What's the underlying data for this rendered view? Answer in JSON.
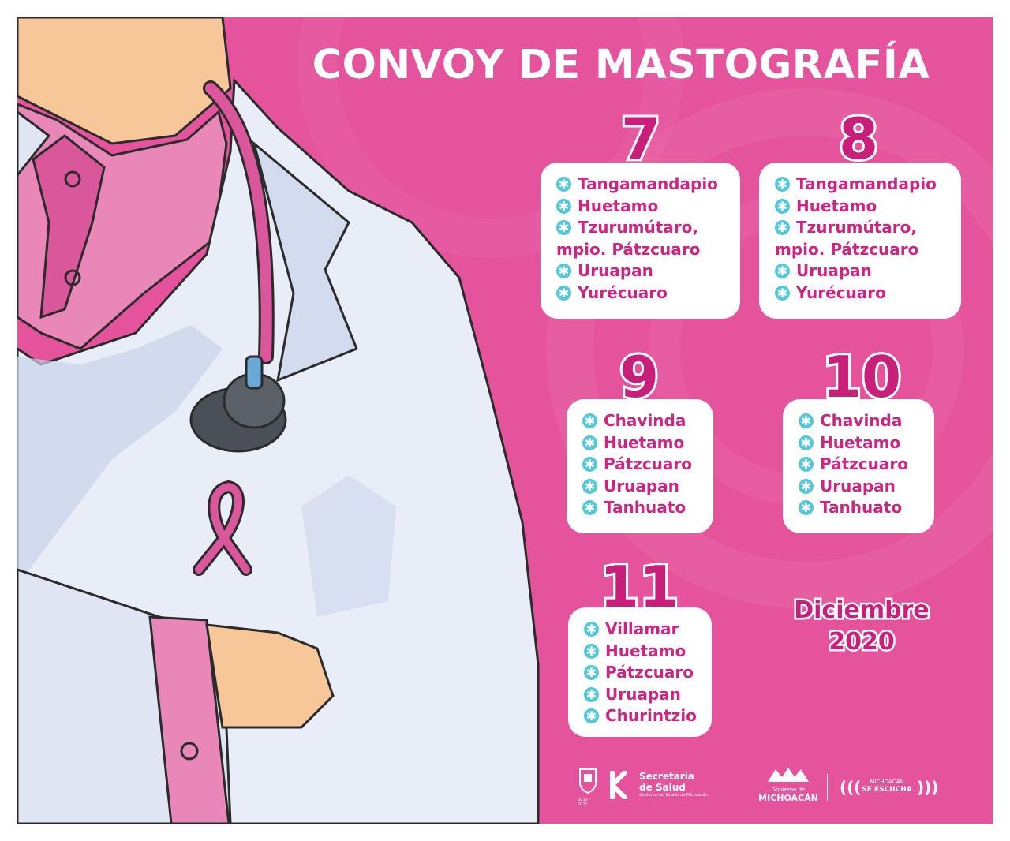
{
  "title": "CONVOY DE MASTOGRAFÍA",
  "colors": {
    "background": "#e4539c",
    "card_text": "#cc2680",
    "number": "#c81f7b",
    "bullet": "#55c8d8",
    "card_bg": "#ffffff"
  },
  "bullet_glyph": "✱",
  "days": [
    {
      "number": "7",
      "items": [
        "Tangamandapio",
        "Huetamo",
        "Tzurumútaro,\nmpio. Pátzcuaro",
        "Uruapan",
        "Yurécuaro"
      ]
    },
    {
      "number": "8",
      "items": [
        "Tangamandapio",
        "Huetamo",
        "Tzurumútaro,\nmpio. Pátzcuaro",
        "Uruapan",
        "Yurécuaro"
      ]
    },
    {
      "number": "9",
      "items": [
        "Chavinda",
        "Huetamo",
        "Pátzcuaro",
        "Uruapan",
        "Tanhuato"
      ]
    },
    {
      "number": "10",
      "items": [
        "Chavinda",
        "Huetamo",
        "Pátzcuaro",
        "Uruapan",
        "Tanhuato"
      ]
    },
    {
      "number": "11",
      "items": [
        "Villamar",
        "Huetamo",
        "Pátzcuaro",
        "Uruapan",
        "Churintzio"
      ]
    }
  ],
  "month": "Diciembre",
  "year": "2020",
  "footer": {
    "salud_line1": "Secretaría",
    "salud_line2": "de Salud",
    "salud_caption": "Gobierno del Estado de Michoacán",
    "gobierno_line1": "Gobierno de",
    "gobierno_line2": "MICHOACÁN",
    "escucha_line1": "MICHOACÁN",
    "escucha_line2": "SE ESCUCHA",
    "crest_years": "2015 - 2021"
  }
}
